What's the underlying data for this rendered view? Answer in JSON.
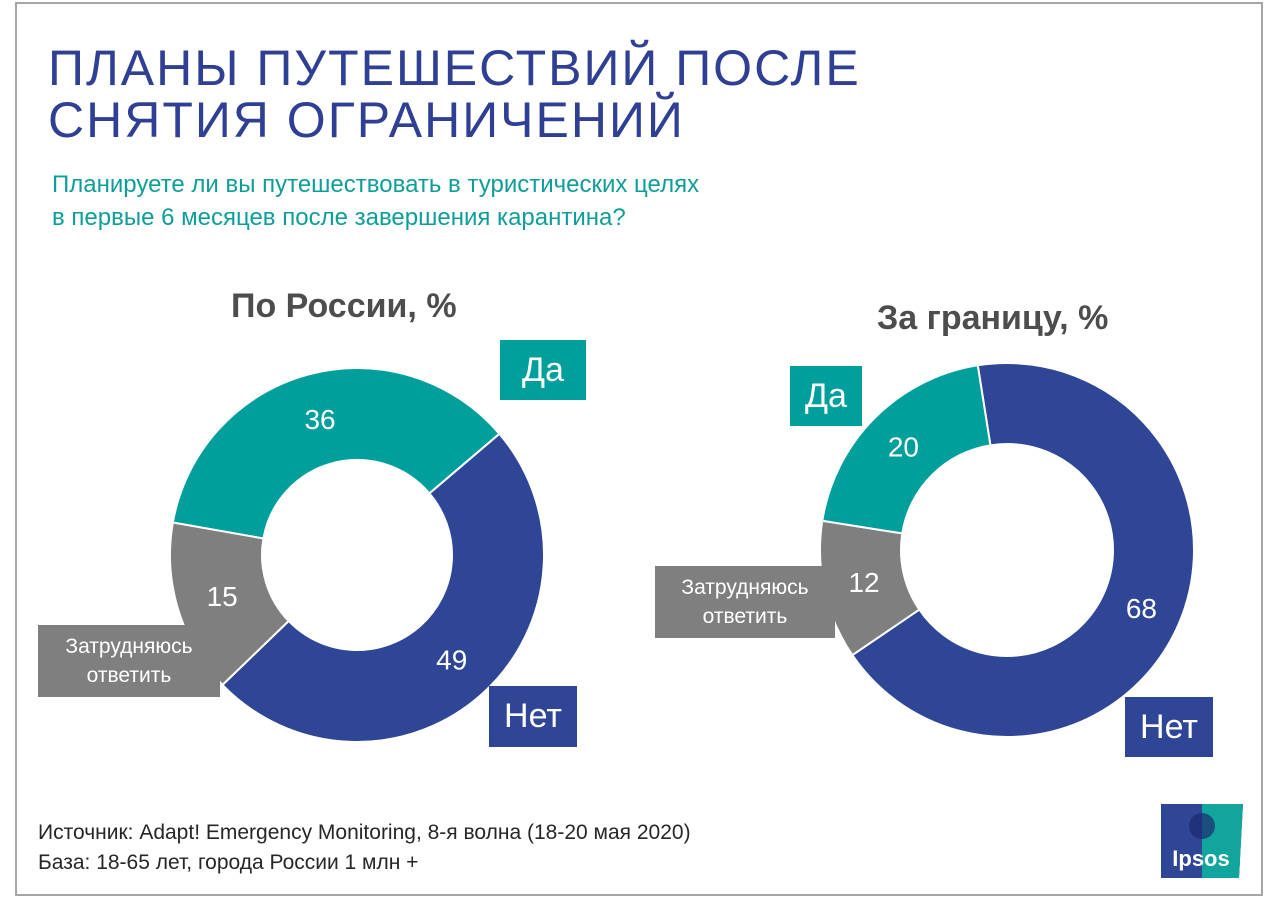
{
  "title": [
    "ПЛАНЫ ПУТЕШЕСТВИЙ ПОСЛЕ",
    "СНЯТИЯ ОГРАНИЧЕНИЙ"
  ],
  "subtitle": [
    "Планируете ли вы путешествовать в туристических целях",
    "в первые 6 месяцев после завершения карантина?"
  ],
  "colors": {
    "yes": "#009f9b",
    "no": "#2f4596",
    "unsure": "#7f7f7f",
    "title": "#2e3f94",
    "subtitle": "#0e9e9a"
  },
  "chart_data": [
    {
      "type": "pie",
      "title": "По России, %",
      "categories": [
        "Да",
        "Нет",
        "Затрудняюсь ответить"
      ],
      "values": [
        36,
        49,
        15
      ],
      "donut": true
    },
    {
      "type": "pie",
      "title": "За границу, %",
      "categories": [
        "Нет",
        "Затрудняюсь ответить",
        "Да"
      ],
      "values": [
        68,
        12,
        20
      ],
      "donut": true
    }
  ],
  "labels": {
    "yes": "Да",
    "no": "Нет",
    "unsure": [
      "Затрудняюсь",
      "ответить"
    ]
  },
  "footer": [
    "Источник: Adapt! Emergency Monitoring, 8-я волна (18-20 мая 2020)",
    "База: 18-65 лет, города России 1 млн +"
  ],
  "logo": "Ipsos"
}
